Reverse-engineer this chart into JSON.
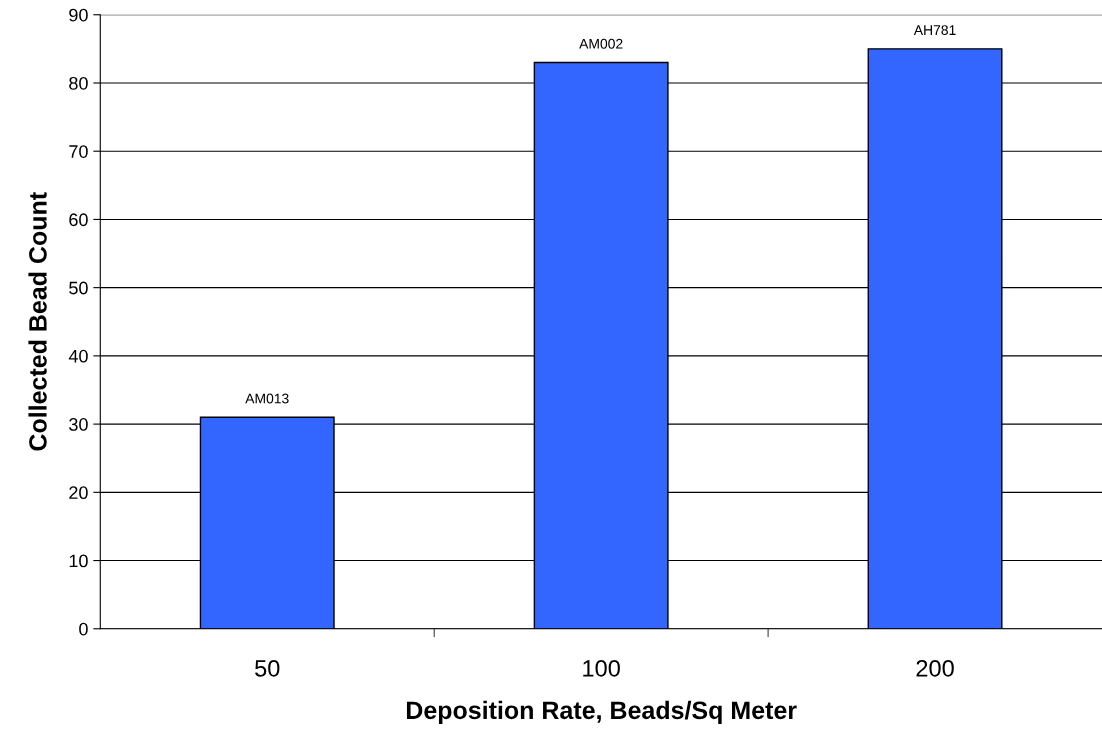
{
  "chart_data": {
    "type": "bar",
    "xlabel": "Deposition Rate, Beads/Sq Meter",
    "ylabel": "Collected Bead Count",
    "categories": [
      "50",
      "100",
      "200"
    ],
    "values": [
      31,
      83,
      85
    ],
    "color": "#3366ff",
    "ylim": [
      0,
      90
    ],
    "yticks": [
      0,
      10,
      20,
      30,
      40,
      50,
      60,
      70,
      80,
      90
    ],
    "grid": "y",
    "annotations": [
      {
        "text": "AM013",
        "x": "50",
        "y": 31
      },
      {
        "text": "AM002",
        "x": "100",
        "y": 83
      },
      {
        "text": "AH781",
        "x": "200",
        "y": 85
      }
    ]
  }
}
